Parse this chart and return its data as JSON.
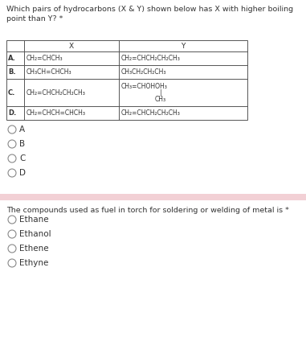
{
  "title1": "Which pairs of hydrocarbons (X & Y) shown below has X with higher boiling\npoint than Y? *",
  "table_rows": [
    [
      "A.",
      "CH₂=CHCH₃",
      "CH₂=CHCH₂CH₂CH₃"
    ],
    [
      "B.",
      "CH₃CH=CHCH₃",
      "CH₃CH₂CH₂CH₃"
    ],
    [
      "C.",
      "CH₂=CHCH₂CH₂CH₃",
      "CH₃=CHOHOH₃\n|\nCH₃"
    ],
    [
      "D.",
      "CH₂=CHCH=CHCH₃",
      "CH₂=CHCH₂CH₂CH₃"
    ]
  ],
  "options1": [
    "A",
    "B",
    "C",
    "D"
  ],
  "title2": "The compounds used as fuel in torch for soldering or welding of metal is *",
  "options2": [
    "Ethane",
    "Ethanol",
    "Ethene",
    "Ethyne"
  ],
  "bg_color": "#ffffff",
  "separator_color": "#f2d0d5",
  "text_color": "#333333",
  "table_border_color": "#555555",
  "fs_title": 6.8,
  "fs_table": 5.5,
  "fs_label": 6.0,
  "fs_option": 7.5
}
